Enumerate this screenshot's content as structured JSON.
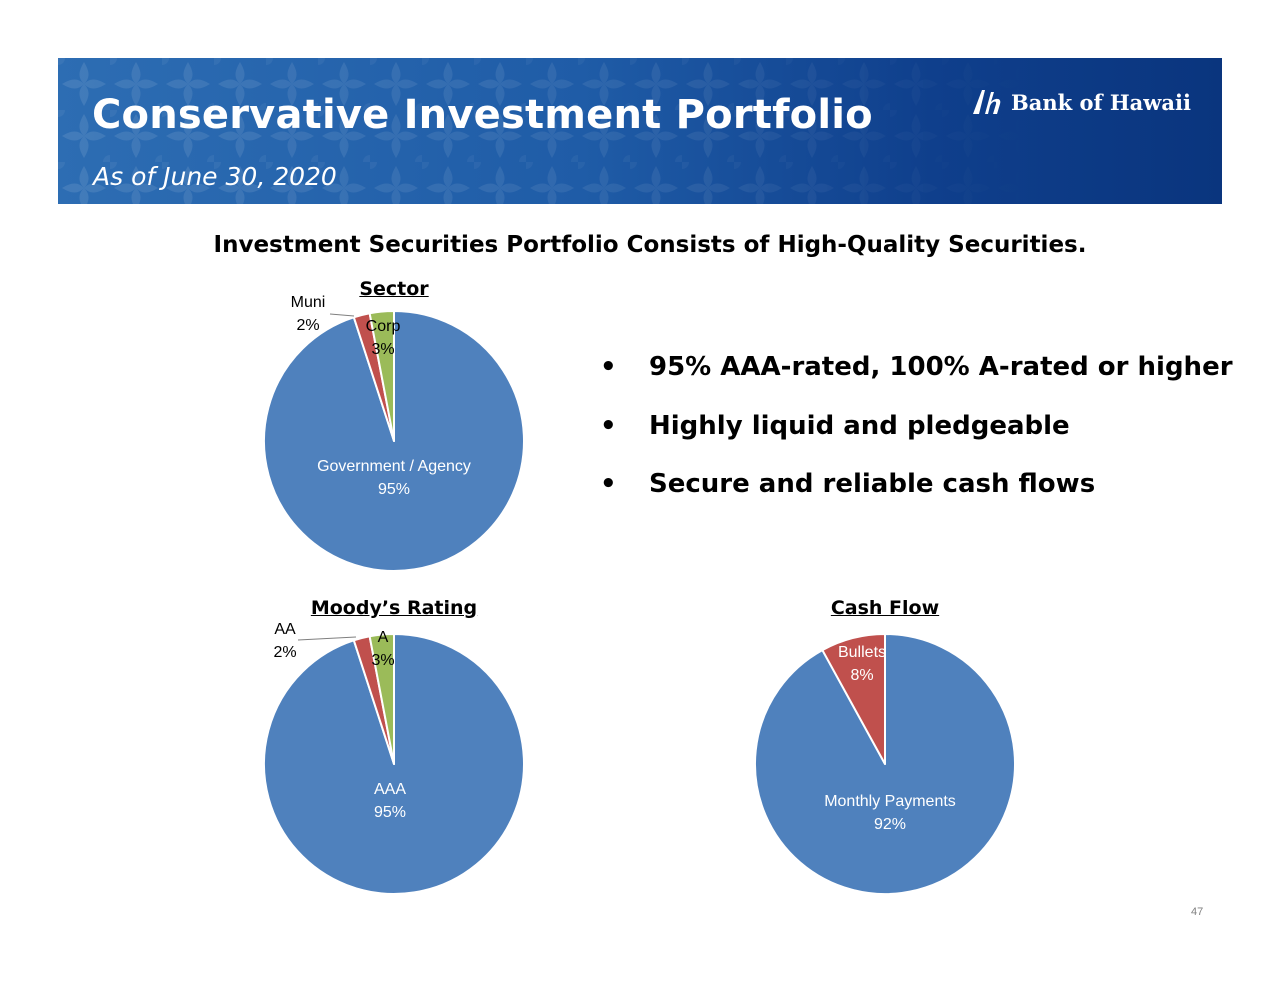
{
  "header": {
    "title": "Conservative Investment Portfolio",
    "subtitle": "As of June 30, 2020",
    "brand_name": "Bank of Hawaii"
  },
  "headline": "Investment Securities Portfolio Consists of High-Quality Securities.",
  "bullets": [
    "95% AAA-rated, 100% A-rated or higher",
    "Highly liquid and pledgeable",
    "Secure and reliable cash flows"
  ],
  "colors": {
    "blue": "#4f81bd",
    "red": "#c0504d",
    "green": "#9bbb59",
    "banner": "#1f5ca7"
  },
  "chart_data": [
    {
      "type": "pie",
      "title": "Sector",
      "slices": [
        {
          "category": "Government / Agency",
          "pct": "95%",
          "value": 95,
          "color": "#4f81bd"
        },
        {
          "category": "Muni",
          "pct": "2%",
          "value": 2,
          "color": "#c0504d"
        },
        {
          "category": "Corp",
          "pct": "3%",
          "value": 3,
          "color": "#9bbb59"
        }
      ]
    },
    {
      "type": "pie",
      "title": "Moody’s Rating",
      "slices": [
        {
          "category": "AAA",
          "pct": "95%",
          "value": 95,
          "color": "#4f81bd"
        },
        {
          "category": "AA",
          "pct": "2%",
          "value": 2,
          "color": "#c0504d"
        },
        {
          "category": "A",
          "pct": "3%",
          "value": 3,
          "color": "#9bbb59"
        }
      ]
    },
    {
      "type": "pie",
      "title": "Cash Flow",
      "slices": [
        {
          "category": "Monthly Payments",
          "pct": "92%",
          "value": 92,
          "color": "#4f81bd"
        },
        {
          "category": "Bullets",
          "pct": "8%",
          "value": 8,
          "color": "#c0504d"
        }
      ]
    }
  ],
  "page_number": "47"
}
